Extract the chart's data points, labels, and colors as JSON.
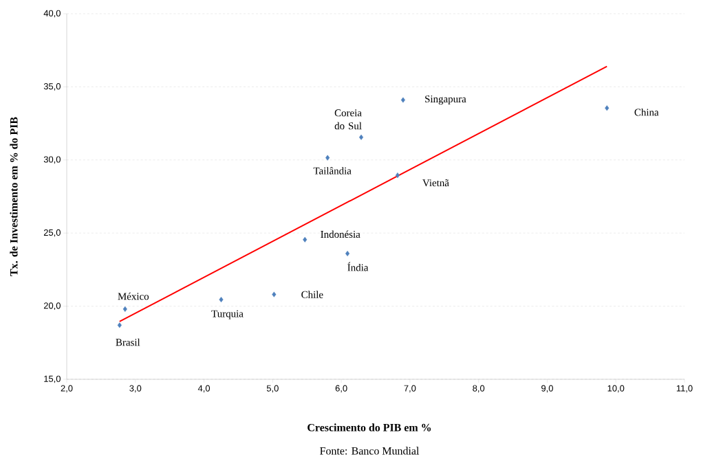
{
  "chart_data": {
    "type": "scatter",
    "xlabel": "Crescimento do PIB em %",
    "ylabel": "Tx. de Investimento em % do PIB",
    "xlim": [
      2,
      11
    ],
    "ylim": [
      15,
      40
    ],
    "xticks": [
      {
        "value": 2,
        "label": "2,0"
      },
      {
        "value": 3,
        "label": "3,0"
      },
      {
        "value": 4,
        "label": "4,0"
      },
      {
        "value": 5,
        "label": "5,0"
      },
      {
        "value": 6,
        "label": "6,0"
      },
      {
        "value": 7,
        "label": "7,0"
      },
      {
        "value": 8,
        "label": "8,0"
      },
      {
        "value": 9,
        "label": "9,0"
      },
      {
        "value": 10,
        "label": "10,0"
      },
      {
        "value": 11,
        "label": "11,0"
      }
    ],
    "yticks": [
      {
        "value": 15,
        "label": "15,0"
      },
      {
        "value": 20,
        "label": "20,0"
      },
      {
        "value": 25,
        "label": "25,0"
      },
      {
        "value": 30,
        "label": "30,0"
      },
      {
        "value": 35,
        "label": "35,0"
      },
      {
        "value": 40,
        "label": "40,0"
      }
    ],
    "grid": "y",
    "series": [
      {
        "marker": "diamond",
        "color": "#4f81bd",
        "x": [
          2.77,
          2.85,
          4.25,
          5.02,
          5.47,
          6.09,
          5.8,
          6.29,
          6.82,
          6.9,
          9.87
        ],
        "values": [
          18.7,
          19.8,
          20.45,
          20.8,
          24.55,
          23.6,
          30.15,
          31.55,
          28.95,
          34.1,
          33.55
        ]
      },
      {
        "type": "line",
        "marker": "none",
        "color": "#ff0000",
        "x": [
          2.77,
          9.87
        ],
        "values": [
          18.95,
          36.4
        ]
      }
    ],
    "annotations": [
      {
        "text": "Brasil",
        "x": 2.77,
        "y": 18.7
      },
      {
        "text": "México",
        "x": 2.85,
        "y": 19.8
      },
      {
        "text": "Turquia",
        "x": 4.25,
        "y": 20.45
      },
      {
        "text": "Chile",
        "x": 5.02,
        "y": 20.8
      },
      {
        "text": "Indonésia",
        "x": 5.47,
        "y": 24.55
      },
      {
        "text": "Índia",
        "x": 6.09,
        "y": 23.6
      },
      {
        "text": "Tailândia",
        "x": 5.8,
        "y": 30.15
      },
      {
        "text": "Coreia do Sul",
        "x": 6.29,
        "y": 31.55
      },
      {
        "text": "Vietnã",
        "x": 6.82,
        "y": 28.95
      },
      {
        "text": "Singapura",
        "x": 6.9,
        "y": 34.1
      },
      {
        "text": "China",
        "x": 9.87,
        "y": 33.55
      },
      "Fonte: Banco Mundial"
    ]
  }
}
